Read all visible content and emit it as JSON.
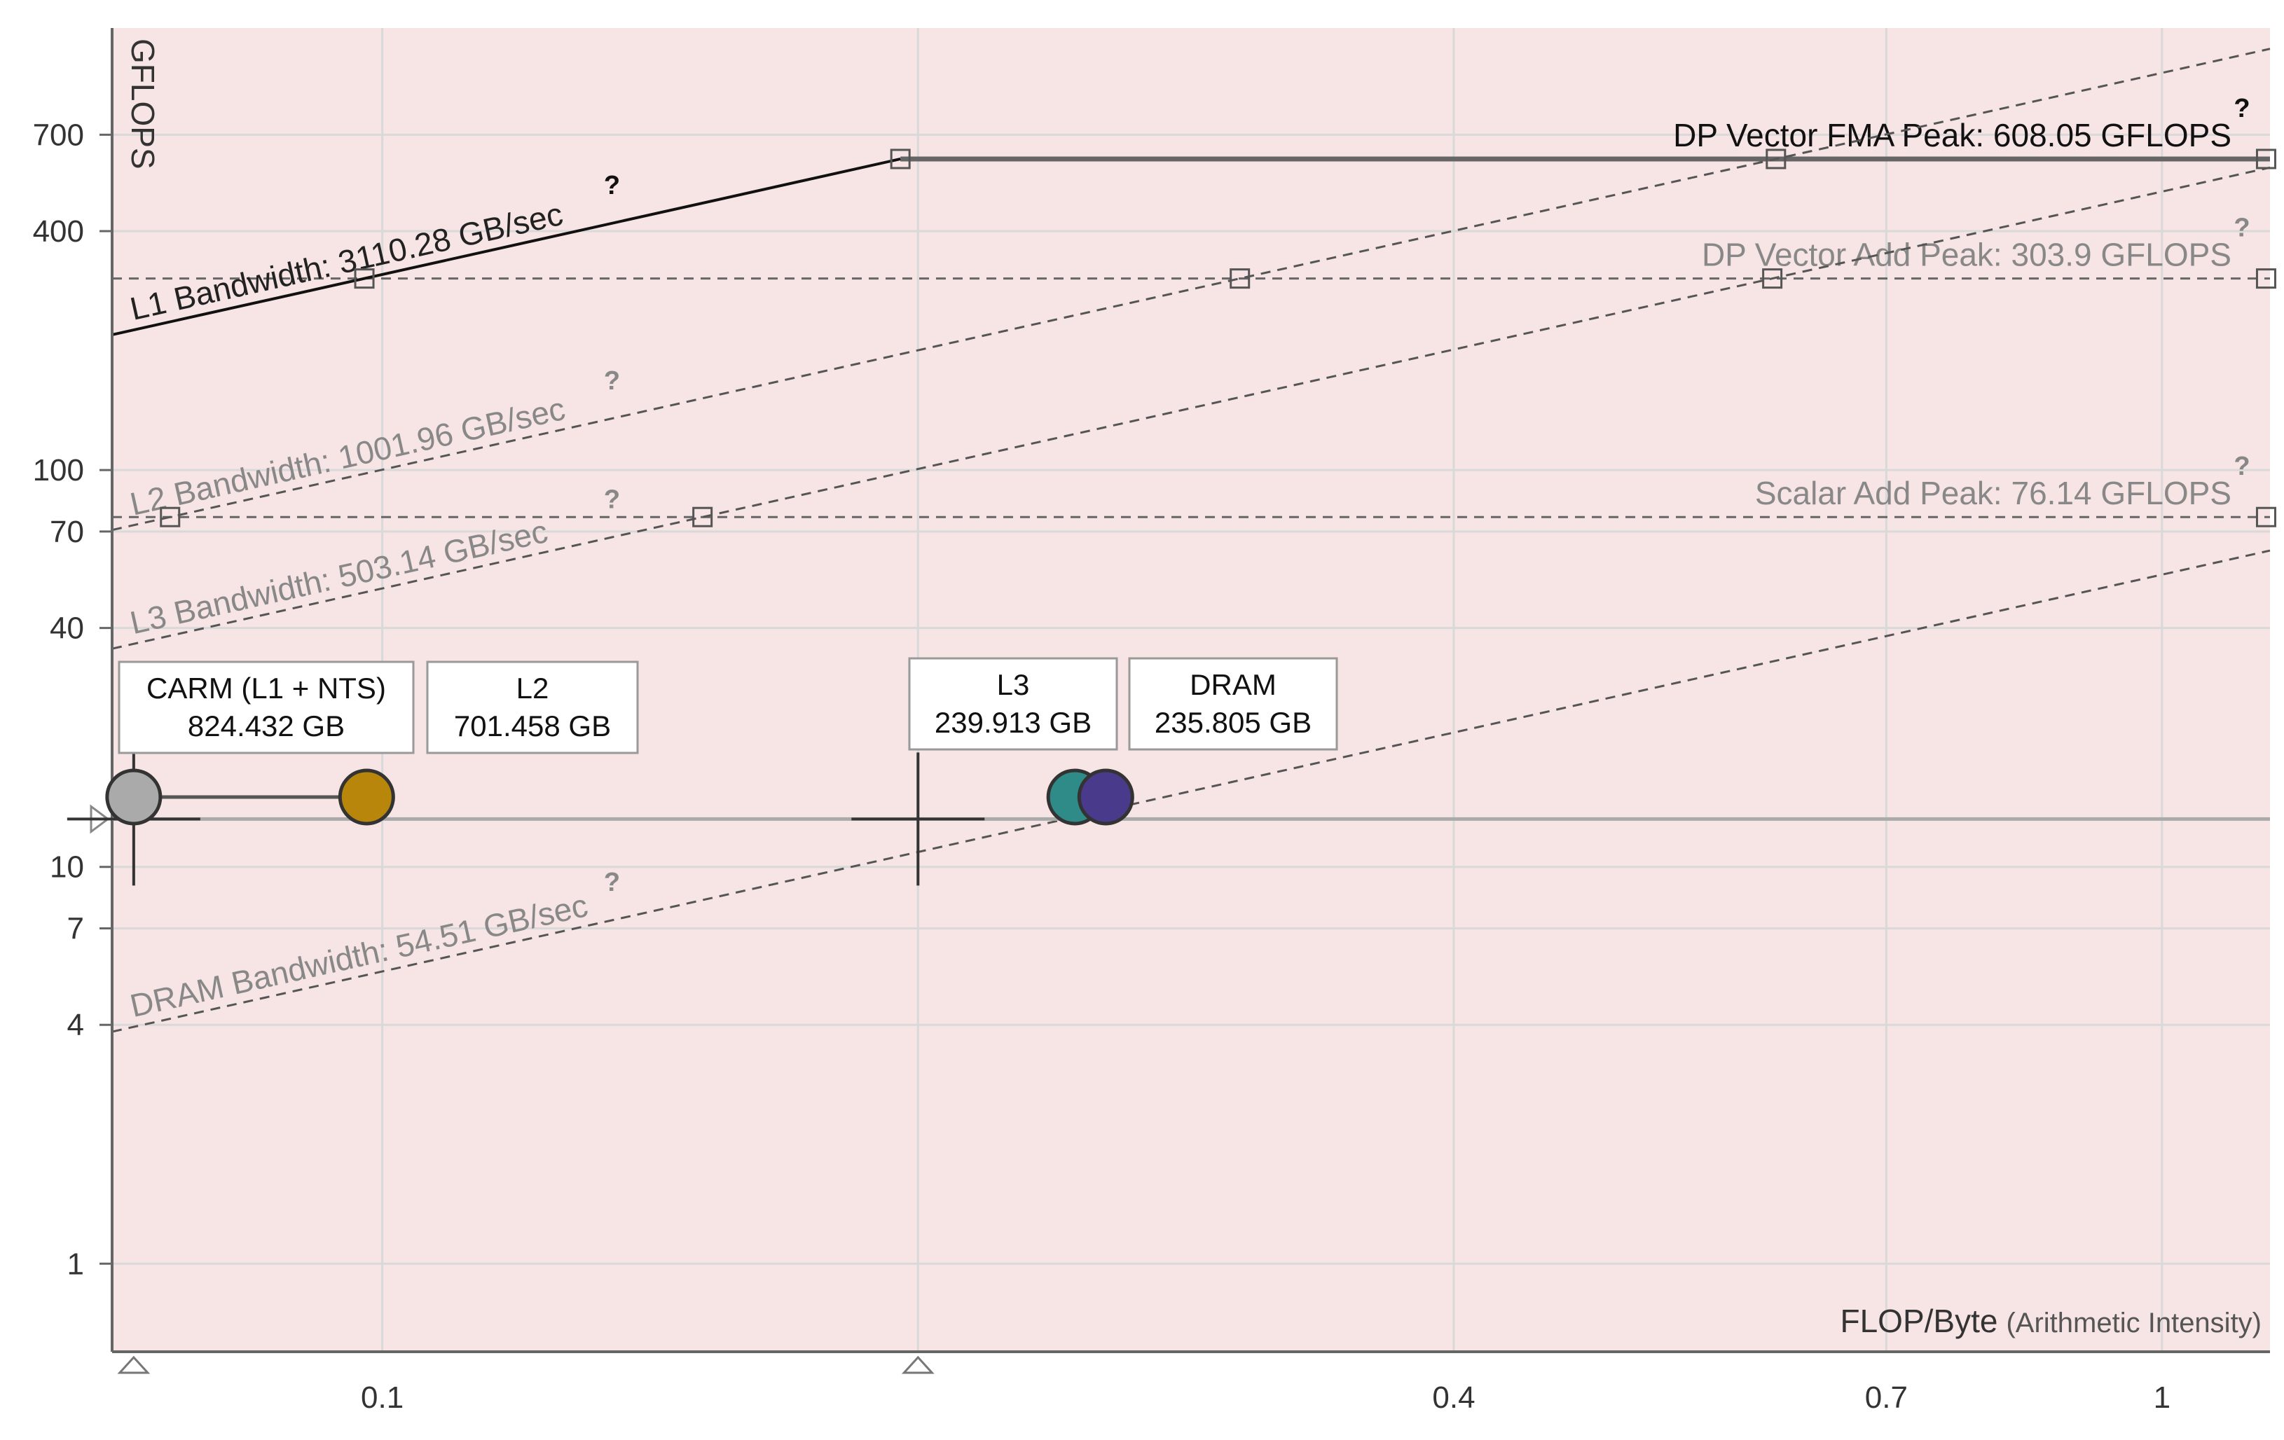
{
  "chart_data": {
    "type": "scatter",
    "ylabel": "GFLOPS",
    "xlabel": "FLOP/Byte",
    "xlabel_note": "(Arithmetic Intensity)",
    "scale": "log-log",
    "xlim": [
      0.0705,
      1.15
    ],
    "ylim": [
      0.6,
      1300
    ],
    "x_ticks": [
      {
        "v": 0.1,
        "label": "0.1"
      },
      {
        "v": 0.4,
        "label": "0.4"
      },
      {
        "v": 0.7,
        "label": "0.7"
      },
      {
        "v": 1.0,
        "label": "1"
      }
    ],
    "x_grid_extra": [
      0.2
    ],
    "y_ticks": [
      {
        "v": 1,
        "label": "1"
      },
      {
        "v": 4,
        "label": "4"
      },
      {
        "v": 7,
        "label": "7"
      },
      {
        "v": 10,
        "label": "10"
      },
      {
        "v": 40,
        "label": "40"
      },
      {
        "v": 70,
        "label": "70"
      },
      {
        "v": 100,
        "label": "100"
      },
      {
        "v": 400,
        "label": "400"
      },
      {
        "v": 700,
        "label": "700"
      }
    ],
    "roofs": {
      "compute": [
        {
          "label": "DP Vector FMA Peak: 608.05 GFLOPS",
          "value": 608.05,
          "style": "solid",
          "color": "#666666",
          "text_color": "#111111"
        },
        {
          "label": "DP Vector Add Peak: 303.9 GFLOPS",
          "value": 303.9,
          "style": "dashed",
          "color": "#666666",
          "text_color": "#888888"
        },
        {
          "label": "Scalar Add Peak: 76.14 GFLOPS",
          "value": 76.14,
          "style": "dashed",
          "color": "#666666",
          "text_color": "#888888"
        }
      ],
      "bandwidth": [
        {
          "label": "L1 Bandwidth: 3110.28 GB/sec",
          "value": 3110.28,
          "style": "solid",
          "color": "#111111",
          "text_color": "#222222"
        },
        {
          "label": "L2 Bandwidth: 1001.96 GB/sec",
          "value": 1001.96,
          "style": "dashed",
          "color": "#555555",
          "text_color": "#888888"
        },
        {
          "label": "L3 Bandwidth: 503.14 GB/sec",
          "value": 503.14,
          "style": "dashed",
          "color": "#555555",
          "text_color": "#888888"
        },
        {
          "label": "DRAM Bandwidth: 54.51 GB/sec",
          "value": 54.51,
          "style": "dashed",
          "color": "#555555",
          "text_color": "#888888"
        }
      ],
      "help_mark": "?"
    },
    "points": [
      {
        "name": "CARM (L1 + NTS)",
        "traffic": "824.432 GB",
        "x": 0.0725,
        "y": 15.0,
        "color": "#aaaaaa"
      },
      {
        "name": "L2",
        "traffic": "701.458 GB",
        "x": 0.098,
        "y": 15.0,
        "color": "#b8860b"
      },
      {
        "name": "L3",
        "traffic": "239.913 GB",
        "x": 0.245,
        "y": 15.0,
        "color": "#2e8b88"
      },
      {
        "name": "DRAM",
        "traffic": "235.805 GB",
        "x": 0.255,
        "y": 15.0,
        "color": "#4a3a8c"
      }
    ],
    "crosshairs": [
      {
        "x": 0.0725,
        "y": 13.2
      },
      {
        "x": 0.2,
        "y": 13.2
      }
    ],
    "annotations": {
      "performance_level": 13.2,
      "x_markers": [
        0.0725,
        0.2
      ]
    },
    "colors": {
      "plot_background": "#f7e4e4",
      "grid": "#d9d9d9",
      "axis": "#666666"
    }
  }
}
